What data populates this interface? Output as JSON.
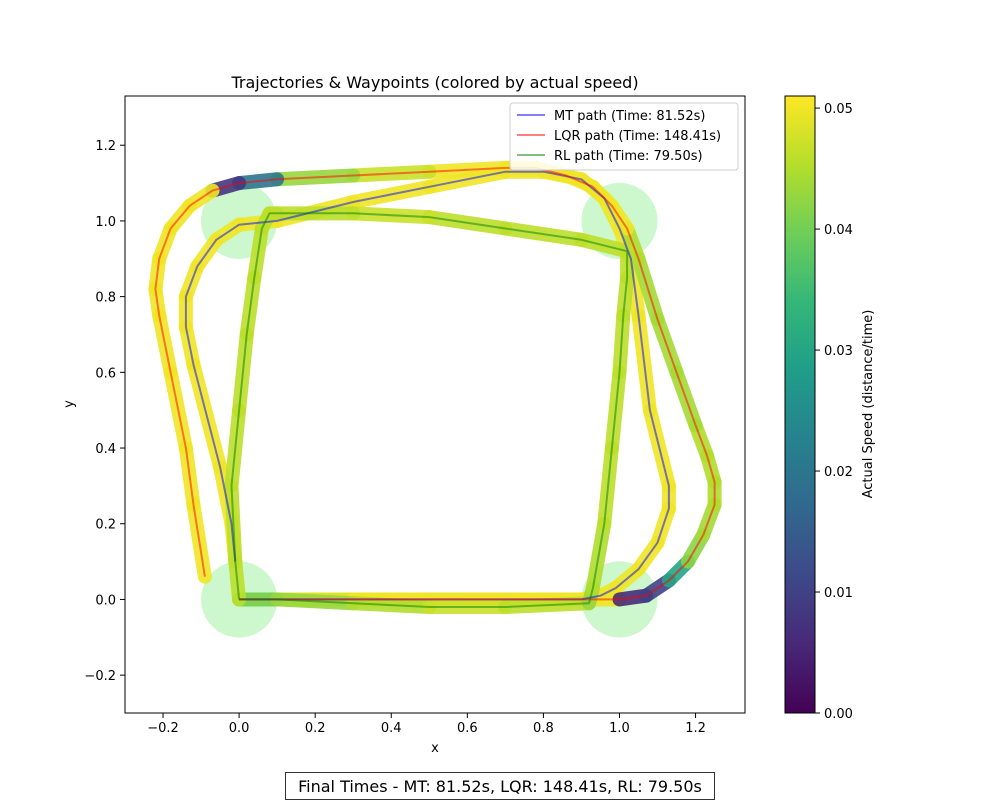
{
  "footer_text": "Final Times - MT: 81.52s, LQR: 148.41s, RL: 79.50s",
  "chart_data": {
    "type": "line",
    "title": "Trajectories & Waypoints (colored by actual speed)",
    "xlabel": "x",
    "ylabel": "y",
    "xlim": [
      -0.3,
      1.33
    ],
    "ylim": [
      -0.3,
      1.33
    ],
    "xticks": [
      -0.2,
      0.0,
      0.2,
      0.4,
      0.6,
      0.8,
      1.0,
      1.2
    ],
    "yticks": [
      -0.2,
      0.0,
      0.2,
      0.4,
      0.6,
      0.8,
      1.0,
      1.2
    ],
    "grid": false,
    "legend_location": "upper right",
    "waypoints": [
      [
        0.0,
        0.0
      ],
      [
        1.0,
        0.0
      ],
      [
        1.0,
        1.0
      ],
      [
        0.0,
        1.0
      ]
    ],
    "waypoint_radius": 0.1,
    "waypoint_color": "#90ee90",
    "colorbar": {
      "label": "Actual Speed (distance/time)",
      "min": 0.0,
      "max": 0.051,
      "ticks": [
        0.0,
        0.01,
        0.02,
        0.03,
        0.04,
        0.05
      ],
      "colormap": "viridis"
    },
    "series": [
      {
        "name": "MT path (Time: 81.52s)",
        "color": "#0000ff",
        "points": [
          [
            0.0,
            0.0
          ],
          [
            0.3,
            0.0
          ],
          [
            0.6,
            0.0
          ],
          [
            0.9,
            0.0
          ],
          [
            0.95,
            0.01
          ],
          [
            0.99,
            0.03
          ],
          [
            1.05,
            0.08
          ],
          [
            1.1,
            0.15
          ],
          [
            1.13,
            0.24
          ],
          [
            1.13,
            0.3
          ],
          [
            1.08,
            0.5
          ],
          [
            1.05,
            0.75
          ],
          [
            1.03,
            0.9
          ],
          [
            1.0,
            0.98
          ],
          [
            0.96,
            1.06
          ],
          [
            0.9,
            1.11
          ],
          [
            0.8,
            1.13
          ],
          [
            0.7,
            1.13
          ],
          [
            0.5,
            1.09
          ],
          [
            0.3,
            1.05
          ],
          [
            0.1,
            1.0
          ],
          [
            0.0,
            0.99
          ],
          [
            -0.06,
            0.95
          ],
          [
            -0.11,
            0.88
          ],
          [
            -0.14,
            0.8
          ],
          [
            -0.14,
            0.72
          ],
          [
            -0.12,
            0.62
          ],
          [
            -0.05,
            0.35
          ],
          [
            -0.02,
            0.2
          ],
          [
            -0.01,
            0.1
          ]
        ],
        "speed": [
          0.045,
          0.049,
          0.05,
          0.05,
          0.05,
          0.05,
          0.05,
          0.05,
          0.05,
          0.05,
          0.05,
          0.05,
          0.05,
          0.05,
          0.05,
          0.05,
          0.05,
          0.05,
          0.05,
          0.05,
          0.05,
          0.05,
          0.05,
          0.05,
          0.05,
          0.05,
          0.05,
          0.05,
          0.05,
          0.05
        ]
      },
      {
        "name": "LQR path (Time: 148.41s)",
        "color": "#ff0000",
        "points": [
          [
            0.0,
            0.0
          ],
          [
            0.3,
            0.0
          ],
          [
            0.6,
            0.0
          ],
          [
            0.9,
            0.0
          ],
          [
            1.0,
            0.0
          ],
          [
            1.07,
            0.01
          ],
          [
            1.13,
            0.05
          ],
          [
            1.18,
            0.1
          ],
          [
            1.22,
            0.17
          ],
          [
            1.25,
            0.25
          ],
          [
            1.25,
            0.31
          ],
          [
            1.23,
            0.38
          ],
          [
            1.2,
            0.46
          ],
          [
            1.15,
            0.6
          ],
          [
            1.1,
            0.74
          ],
          [
            1.05,
            0.9
          ],
          [
            1.02,
            0.98
          ],
          [
            0.98,
            1.04
          ],
          [
            0.93,
            1.09
          ],
          [
            0.86,
            1.12
          ],
          [
            0.78,
            1.14
          ],
          [
            0.7,
            1.14
          ],
          [
            0.5,
            1.13
          ],
          [
            0.3,
            1.12
          ],
          [
            0.1,
            1.11
          ],
          [
            0.0,
            1.1
          ],
          [
            -0.07,
            1.08
          ],
          [
            -0.13,
            1.04
          ],
          [
            -0.18,
            0.98
          ],
          [
            -0.21,
            0.9
          ],
          [
            -0.22,
            0.82
          ],
          [
            -0.21,
            0.75
          ],
          [
            -0.18,
            0.6
          ],
          [
            -0.14,
            0.4
          ],
          [
            -0.12,
            0.25
          ],
          [
            -0.09,
            0.06
          ]
        ],
        "speed": [
          0.049,
          0.05,
          0.05,
          0.05,
          0.006,
          0.01,
          0.03,
          0.042,
          0.044,
          0.045,
          0.045,
          0.045,
          0.044,
          0.044,
          0.044,
          0.045,
          0.05,
          0.05,
          0.05,
          0.05,
          0.05,
          0.05,
          0.047,
          0.043,
          0.02,
          0.008,
          0.05,
          0.05,
          0.05,
          0.05,
          0.05,
          0.05,
          0.05,
          0.05,
          0.05,
          0.05
        ]
      },
      {
        "name": "RL path (Time: 79.50s)",
        "color": "#008000",
        "points": [
          [
            0.0,
            0.0
          ],
          [
            0.1,
            0.0
          ],
          [
            0.3,
            -0.01
          ],
          [
            0.5,
            -0.02
          ],
          [
            0.7,
            -0.02
          ],
          [
            0.92,
            -0.01
          ],
          [
            0.93,
            0.03
          ],
          [
            0.96,
            0.2
          ],
          [
            0.98,
            0.4
          ],
          [
            1.0,
            0.6
          ],
          [
            1.01,
            0.75
          ],
          [
            1.02,
            0.85
          ],
          [
            1.02,
            0.92
          ],
          [
            0.9,
            0.95
          ],
          [
            0.7,
            0.98
          ],
          [
            0.5,
            1.01
          ],
          [
            0.3,
            1.02
          ],
          [
            0.1,
            1.02
          ],
          [
            0.08,
            1.02
          ],
          [
            0.06,
            0.98
          ],
          [
            0.04,
            0.85
          ],
          [
            0.02,
            0.7
          ],
          [
            0.0,
            0.5
          ],
          [
            -0.02,
            0.3
          ],
          [
            -0.01,
            0.1
          ],
          [
            0.0,
            0.0
          ]
        ],
        "speed": [
          0.04,
          0.043,
          0.045,
          0.047,
          0.046,
          0.043,
          0.045,
          0.046,
          0.046,
          0.046,
          0.046,
          0.046,
          0.046,
          0.046,
          0.046,
          0.047,
          0.046,
          0.046,
          0.046,
          0.046,
          0.046,
          0.046,
          0.046,
          0.046,
          0.046,
          0.046
        ]
      }
    ]
  }
}
